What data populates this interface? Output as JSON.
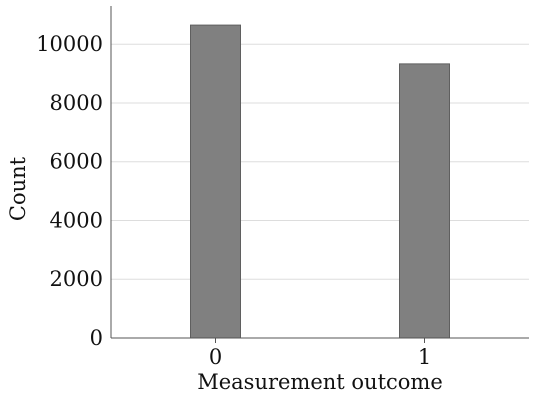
{
  "chart_data": {
    "type": "bar",
    "categories": [
      "0",
      "1"
    ],
    "values": [
      10650,
      9330
    ],
    "xlabel": "Measurement outcome",
    "ylabel": "Count",
    "ylim": [
      0,
      11300
    ],
    "yticks": [
      "0",
      "2000",
      "4000",
      "6000",
      "8000",
      "10000"
    ],
    "grid": "horizontal",
    "colors": {
      "bar": "#808080",
      "bar_edge": "#5f5f5f",
      "grid": "#dddddd",
      "axis": "#555555"
    }
  }
}
